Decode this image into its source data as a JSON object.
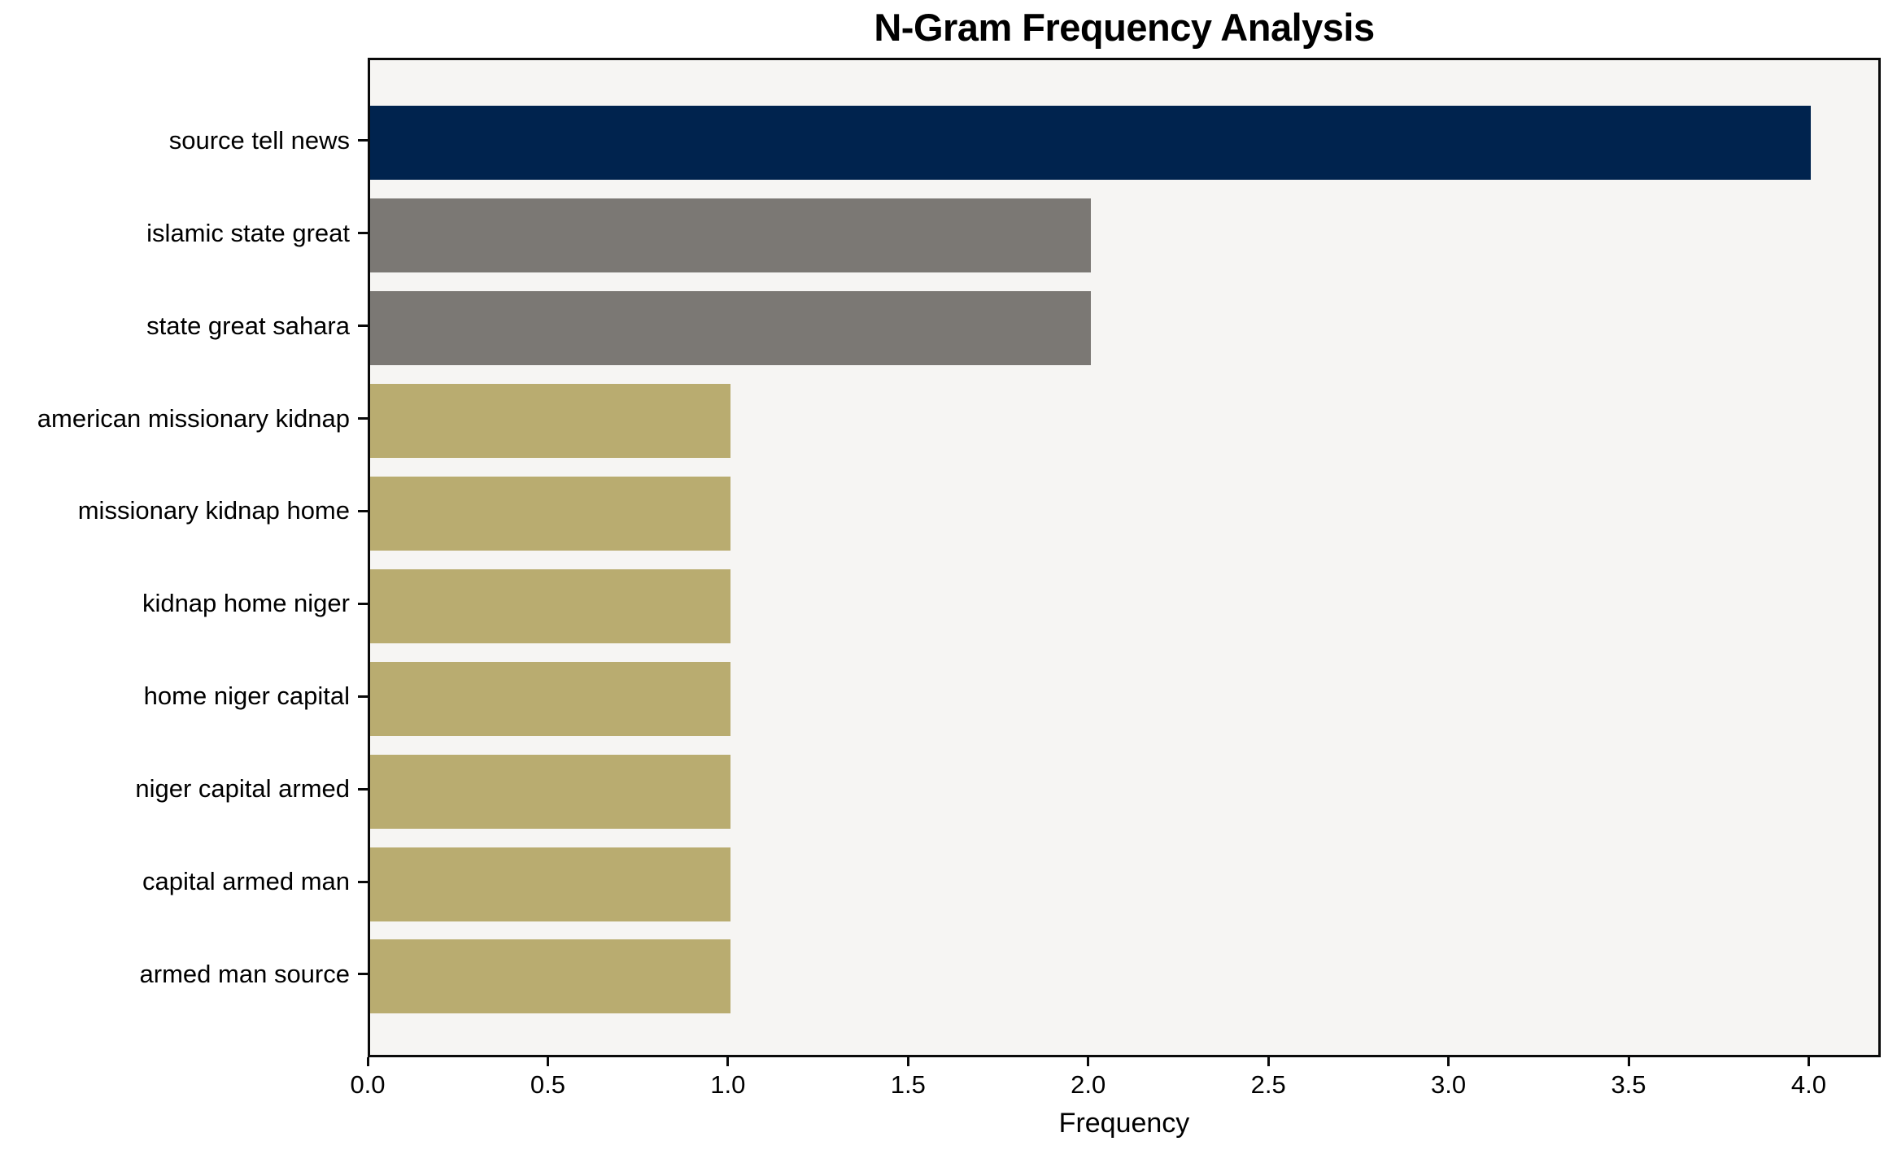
{
  "page": {
    "figure_background": "#ffffff"
  },
  "chart_data": {
    "type": "bar",
    "orientation": "horizontal",
    "title": "N-Gram Frequency Analysis",
    "xlabel": "Frequency",
    "ylabel": "",
    "categories": [
      "source tell news",
      "islamic state great",
      "state great sahara",
      "american missionary kidnap",
      "missionary kidnap home",
      "kidnap home niger",
      "home niger capital",
      "niger capital armed",
      "capital armed man",
      "armed man source"
    ],
    "values": [
      4,
      2,
      2,
      1,
      1,
      1,
      1,
      1,
      1,
      1
    ],
    "bar_colors": [
      "#00234e",
      "#7b7874",
      "#7b7874",
      "#b9ac70",
      "#b9ac70",
      "#b9ac70",
      "#b9ac70",
      "#b9ac70",
      "#b9ac70",
      "#b9ac70"
    ],
    "x_ticks": [
      0.0,
      0.5,
      1.0,
      1.5,
      2.0,
      2.5,
      3.0,
      3.5,
      4.0
    ],
    "x_tick_labels": [
      "0.0",
      "0.5",
      "1.0",
      "1.5",
      "2.0",
      "2.5",
      "3.0",
      "3.5",
      "4.0"
    ],
    "xlim": [
      0,
      4.2
    ],
    "grid": false,
    "legend_position": "none",
    "plot_background": "#f6f5f3",
    "spine_color": "#0a0a0a",
    "text_color": "#000000"
  }
}
